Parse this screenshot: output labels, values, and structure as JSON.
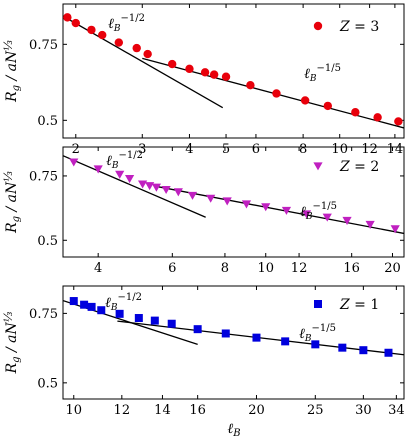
{
  "chart_data": [
    {
      "type": "scatter",
      "x_scale": "log",
      "y_scale": "log",
      "xlim": [
        1.85,
        14.8
      ],
      "ylim": [
        0.455,
        0.93
      ],
      "xticks": [
        2,
        3,
        4,
        5,
        6,
        8,
        10,
        12,
        14
      ],
      "yticks": [
        0.5,
        0.75
      ],
      "ylabel": "R_g / aN^{1/3}",
      "legend": {
        "label": "Z = 3",
        "marker": "circle",
        "color": "#e8000b",
        "position": "top-right"
      },
      "series": [
        {
          "marker": "circle",
          "color": "#e8000b",
          "x": [
            1.9,
            2.0,
            2.2,
            2.35,
            2.6,
            2.9,
            3.1,
            3.6,
            4.0,
            4.4,
            4.65,
            5.0,
            5.8,
            6.8,
            8.1,
            9.3,
            11.0,
            12.6,
            14.3
          ],
          "y": [
            0.866,
            0.84,
            0.81,
            0.788,
            0.757,
            0.735,
            0.712,
            0.675,
            0.658,
            0.646,
            0.638,
            0.631,
            0.603,
            0.577,
            0.556,
            0.54,
            0.522,
            0.508,
            0.497
          ]
        }
      ],
      "fit_lines": [
        {
          "x": [
            1.85,
            4.9
          ],
          "y": [
            0.872,
            0.535
          ],
          "label": "ℓ_B^{-1/2}"
        },
        {
          "x": [
            3.0,
            14.8
          ],
          "y": [
            0.696,
            0.48
          ],
          "label": "ℓ_B^{-1/5}"
        }
      ]
    },
    {
      "type": "scatter",
      "x_scale": "log",
      "y_scale": "log",
      "xlim": [
        3.3,
        21.3
      ],
      "ylim": [
        0.45,
        0.9
      ],
      "xticks": [
        4,
        6,
        8,
        10,
        12,
        16,
        20
      ],
      "yticks": [
        0.5,
        0.75
      ],
      "ylabel": "R_g / aN^{1/3}",
      "legend": {
        "label": "Z = 2",
        "marker": "triangle-down",
        "color": "#c020c0",
        "position": "top-right"
      },
      "series": [
        {
          "marker": "triangle-down",
          "color": "#c020c0",
          "x": [
            3.5,
            4.0,
            4.5,
            4.75,
            5.1,
            5.3,
            5.5,
            5.8,
            6.2,
            6.7,
            7.4,
            8.1,
            9.0,
            10.0,
            11.2,
            12.5,
            14.0,
            15.6,
            17.7,
            20.3
          ],
          "y": [
            0.818,
            0.783,
            0.757,
            0.737,
            0.712,
            0.705,
            0.698,
            0.688,
            0.678,
            0.663,
            0.651,
            0.64,
            0.628,
            0.617,
            0.603,
            0.59,
            0.578,
            0.566,
            0.552,
            0.537
          ]
        }
      ],
      "fit_lines": [
        {
          "x": [
            3.3,
            7.2
          ],
          "y": [
            0.852,
            0.578
          ],
          "label": "ℓ_B^{-1/2}"
        },
        {
          "x": [
            5.5,
            21.3
          ],
          "y": [
            0.702,
            0.522
          ],
          "label": "ℓ_B^{-1/5}"
        }
      ]
    },
    {
      "type": "scatter",
      "x_scale": "log",
      "y_scale": "log",
      "xlim": [
        9.6,
        35
      ],
      "ylim": [
        0.455,
        0.88
      ],
      "xticks": [
        10,
        12,
        14,
        16,
        20,
        25,
        30,
        34
      ],
      "yticks": [
        0.5,
        0.75
      ],
      "xlabel": "ℓ_B",
      "ylabel": "R_g / aN^{1/3}",
      "legend": {
        "label": "Z = 1",
        "marker": "square",
        "color": "#0000dd",
        "position": "top-right"
      },
      "series": [
        {
          "marker": "square",
          "color": "#0000dd",
          "x": [
            10.0,
            10.4,
            10.7,
            11.1,
            11.9,
            12.8,
            13.6,
            14.5,
            16.0,
            17.8,
            20.0,
            22.3,
            25.0,
            27.7,
            30.0,
            33.0
          ],
          "y": [
            0.806,
            0.789,
            0.779,
            0.764,
            0.748,
            0.73,
            0.719,
            0.706,
            0.684,
            0.667,
            0.651,
            0.637,
            0.626,
            0.614,
            0.605,
            0.596
          ]
        }
      ],
      "fit_lines": [
        {
          "x": [
            9.6,
            16.0
          ],
          "y": [
            0.808,
            0.626
          ],
          "label": "ℓ_B^{-1/2}"
        },
        {
          "x": [
            11.8,
            35.0
          ],
          "y": [
            0.717,
            0.589
          ],
          "label": "ℓ_B^{-1/5}"
        }
      ]
    }
  ]
}
